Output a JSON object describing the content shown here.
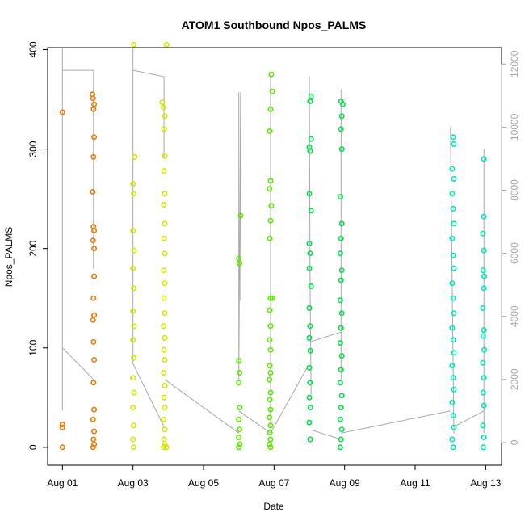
{
  "chart_data": {
    "type": "scatter",
    "title": "ATOM1 Southbound Npos_PALMS",
    "xlabel": "Date",
    "ylabel": "Npos_PALMS",
    "x_tick_labels": [
      "Aug 01",
      "Aug 03",
      "Aug 05",
      "Aug 07",
      "Aug 09",
      "Aug 11",
      "Aug 13"
    ],
    "x_tick_days": [
      1,
      3,
      5,
      7,
      9,
      11,
      13
    ],
    "xlim_days": [
      0.58,
      13.45
    ],
    "ylim": [
      -18,
      402
    ],
    "y_ticks": [
      0,
      100,
      200,
      300,
      400
    ],
    "y2_ticks": [
      0,
      2000,
      4000,
      6000,
      8000,
      10000,
      12000
    ],
    "y2lim": [
      -720,
      12520
    ],
    "y2_color": "#a8a8a8",
    "grid": false,
    "legend": "none",
    "point_style": "open-circle",
    "series": [
      {
        "color": "#ee7a00",
        "points": [
          [
            1.0,
            337
          ],
          [
            1.0,
            23
          ],
          [
            1.0,
            20
          ],
          [
            1.0,
            0
          ],
          [
            1.85,
            355
          ],
          [
            1.87,
            351
          ],
          [
            1.88,
            340
          ],
          [
            1.9,
            312
          ],
          [
            1.88,
            292
          ],
          [
            1.86,
            257
          ],
          [
            1.88,
            222
          ],
          [
            1.9,
            218
          ],
          [
            1.87,
            208
          ],
          [
            1.9,
            172
          ],
          [
            1.88,
            150
          ],
          [
            1.9,
            133
          ],
          [
            1.87,
            128
          ],
          [
            1.88,
            106
          ],
          [
            1.9,
            88
          ],
          [
            1.88,
            65
          ],
          [
            1.9,
            38
          ],
          [
            1.87,
            28
          ],
          [
            1.9,
            16
          ],
          [
            1.88,
            8
          ],
          [
            1.9,
            3
          ],
          [
            1.87,
            0
          ],
          [
            1.9,
            345
          ],
          [
            1.9,
            200
          ]
        ]
      },
      {
        "color": "#d5e600",
        "points": [
          [
            3.02,
            405
          ],
          [
            3.05,
            292
          ],
          [
            3.0,
            265
          ],
          [
            3.02,
            255
          ],
          [
            3.0,
            218
          ],
          [
            3.03,
            198
          ],
          [
            3.0,
            180
          ],
          [
            3.02,
            160
          ],
          [
            3.0,
            137
          ],
          [
            3.03,
            122
          ],
          [
            3.0,
            108
          ],
          [
            3.02,
            90
          ],
          [
            3.0,
            70
          ],
          [
            3.03,
            55
          ],
          [
            3.0,
            40
          ],
          [
            3.02,
            22
          ],
          [
            3.0,
            8
          ],
          [
            3.02,
            0
          ],
          [
            3.83,
            347
          ],
          [
            3.86,
            342
          ],
          [
            3.9,
            333
          ],
          [
            3.88,
            320
          ],
          [
            3.9,
            293
          ],
          [
            3.88,
            278
          ],
          [
            3.9,
            255
          ],
          [
            3.87,
            244
          ],
          [
            3.9,
            225
          ],
          [
            3.88,
            210
          ],
          [
            3.9,
            195
          ],
          [
            3.87,
            178
          ],
          [
            3.9,
            165
          ],
          [
            3.88,
            150
          ],
          [
            3.9,
            135
          ],
          [
            3.87,
            122
          ],
          [
            3.9,
            110
          ],
          [
            3.88,
            98
          ],
          [
            3.9,
            88
          ],
          [
            3.87,
            75
          ],
          [
            3.9,
            62
          ],
          [
            3.88,
            50
          ],
          [
            3.9,
            40
          ],
          [
            3.87,
            28
          ],
          [
            3.9,
            18
          ],
          [
            3.88,
            8
          ],
          [
            3.9,
            2
          ],
          [
            3.87,
            0
          ],
          [
            3.95,
            405
          ],
          [
            3.95,
            0
          ]
        ]
      },
      {
        "color": "#5ee600",
        "points": [
          [
            6.05,
            233
          ],
          [
            6.0,
            190
          ],
          [
            6.02,
            185
          ],
          [
            6.0,
            87
          ],
          [
            6.02,
            75
          ],
          [
            6.0,
            65
          ],
          [
            6.03,
            40
          ],
          [
            6.0,
            28
          ],
          [
            6.02,
            18
          ],
          [
            6.0,
            10
          ],
          [
            6.03,
            3
          ],
          [
            6.0,
            0
          ],
          [
            6.92,
            375
          ],
          [
            6.95,
            358
          ],
          [
            6.9,
            340
          ],
          [
            6.88,
            318
          ],
          [
            6.9,
            268
          ],
          [
            6.87,
            260
          ],
          [
            6.92,
            243
          ],
          [
            6.9,
            228
          ],
          [
            6.88,
            210
          ],
          [
            6.95,
            150
          ],
          [
            6.9,
            150
          ],
          [
            6.88,
            138
          ],
          [
            6.9,
            122
          ],
          [
            6.87,
            108
          ],
          [
            6.9,
            98
          ],
          [
            6.88,
            82
          ],
          [
            6.9,
            75
          ],
          [
            6.87,
            68
          ],
          [
            6.9,
            55
          ],
          [
            6.88,
            48
          ],
          [
            6.9,
            38
          ],
          [
            6.87,
            30
          ],
          [
            6.9,
            22
          ],
          [
            6.88,
            15
          ],
          [
            6.9,
            8
          ],
          [
            6.87,
            3
          ],
          [
            6.9,
            0
          ]
        ]
      },
      {
        "color": "#00e04b",
        "points": [
          [
            8.05,
            353
          ],
          [
            8.02,
            348
          ],
          [
            8.05,
            310
          ],
          [
            8.0,
            302
          ],
          [
            8.02,
            298
          ],
          [
            8.0,
            255
          ],
          [
            8.05,
            238
          ],
          [
            8.0,
            205
          ],
          [
            8.02,
            195
          ],
          [
            8.0,
            180
          ],
          [
            8.05,
            162
          ],
          [
            8.0,
            140
          ],
          [
            8.02,
            122
          ],
          [
            8.0,
            110
          ],
          [
            8.03,
            97
          ],
          [
            8.0,
            80
          ],
          [
            8.02,
            65
          ],
          [
            8.0,
            50
          ],
          [
            8.03,
            40
          ],
          [
            8.0,
            25
          ],
          [
            8.02,
            8
          ],
          [
            8.9,
            348
          ],
          [
            8.95,
            345
          ],
          [
            8.92,
            333
          ],
          [
            8.9,
            320
          ],
          [
            8.92,
            300
          ],
          [
            8.88,
            252
          ],
          [
            8.92,
            225
          ],
          [
            8.9,
            210
          ],
          [
            8.88,
            195
          ],
          [
            8.92,
            178
          ],
          [
            8.9,
            168
          ],
          [
            8.88,
            148
          ],
          [
            8.92,
            135
          ],
          [
            8.9,
            120
          ],
          [
            8.88,
            105
          ],
          [
            8.92,
            92
          ],
          [
            8.9,
            78
          ],
          [
            8.88,
            65
          ],
          [
            8.92,
            52
          ],
          [
            8.9,
            40
          ],
          [
            8.88,
            28
          ],
          [
            8.92,
            18
          ],
          [
            8.9,
            8
          ],
          [
            8.88,
            0
          ]
        ]
      },
      {
        "color": "#00e8b8",
        "points": [
          [
            12.08,
            312
          ],
          [
            12.1,
            305
          ],
          [
            12.05,
            280
          ],
          [
            12.1,
            270
          ],
          [
            12.05,
            255
          ],
          [
            12.08,
            240
          ],
          [
            12.1,
            225
          ],
          [
            12.05,
            210
          ],
          [
            12.08,
            193
          ],
          [
            12.1,
            180
          ],
          [
            12.05,
            165
          ],
          [
            12.08,
            150
          ],
          [
            12.1,
            135
          ],
          [
            12.05,
            120
          ],
          [
            12.08,
            108
          ],
          [
            12.1,
            95
          ],
          [
            12.05,
            82
          ],
          [
            12.08,
            70
          ],
          [
            12.1,
            58
          ],
          [
            12.05,
            45
          ],
          [
            12.08,
            32
          ],
          [
            12.1,
            20
          ],
          [
            12.05,
            8
          ],
          [
            12.08,
            0
          ],
          [
            12.95,
            290
          ],
          [
            12.95,
            232
          ],
          [
            12.92,
            215
          ],
          [
            12.95,
            198
          ],
          [
            12.93,
            178
          ],
          [
            12.96,
            172
          ],
          [
            12.95,
            160
          ],
          [
            12.92,
            140
          ],
          [
            12.95,
            118
          ],
          [
            12.93,
            112
          ],
          [
            12.96,
            98
          ],
          [
            12.92,
            85
          ],
          [
            12.95,
            70
          ],
          [
            12.93,
            55
          ],
          [
            12.95,
            42
          ],
          [
            12.92,
            22
          ],
          [
            12.95,
            10
          ],
          [
            12.93,
            0
          ]
        ]
      }
    ],
    "y2_line_segments": [
      {
        "days": [
          1.0,
          1.0,
          1.0,
          1.0,
          1.0,
          1.0
        ],
        "values": [
          12500,
          11800,
          5500,
          3000,
          2500,
          1000
        ]
      },
      {
        "days": [
          1.0,
          1.88,
          1.88
        ],
        "values": [
          11800,
          11800,
          5500
        ]
      },
      {
        "days": [
          1.0,
          1.88
        ],
        "values": [
          3000,
          2000
        ]
      },
      {
        "days": [
          3.0,
          3.0,
          3.0,
          3.0
        ],
        "values": [
          12500,
          11800,
          6000,
          2500
        ]
      },
      {
        "days": [
          3.0,
          3.88,
          3.88
        ],
        "values": [
          11800,
          11600,
          9000
        ]
      },
      {
        "days": [
          3.0,
          3.88
        ],
        "values": [
          2500,
          500
        ]
      },
      {
        "days": [
          3.9,
          6.0
        ],
        "values": [
          2000,
          300
        ]
      },
      {
        "days": [
          6.0,
          6.0,
          6.05,
          6.05
        ],
        "values": [
          11100,
          2000,
          11100,
          4500
        ]
      },
      {
        "days": [
          6.0,
          6.9
        ],
        "values": [
          1000,
          300
        ]
      },
      {
        "days": [
          6.9,
          6.9
        ],
        "values": [
          11600,
          300
        ]
      },
      {
        "days": [
          6.9,
          8.0
        ],
        "values": [
          300,
          2500
        ]
      },
      {
        "days": [
          8.0,
          8.02,
          8.05
        ],
        "values": [
          11600,
          5000,
          1500
        ]
      },
      {
        "days": [
          8.05,
          8.9
        ],
        "values": [
          3200,
          3500
        ]
      },
      {
        "days": [
          8.9,
          8.9
        ],
        "values": [
          11200,
          2000
        ]
      },
      {
        "days": [
          8.05,
          8.9
        ],
        "values": [
          400,
          100
        ]
      },
      {
        "days": [
          8.9,
          12.0
        ],
        "values": [
          300,
          1000
        ]
      },
      {
        "days": [
          12.0,
          12.1
        ],
        "values": [
          10000,
          300
        ]
      },
      {
        "days": [
          12.1,
          12.95
        ],
        "values": [
          500,
          1000
        ]
      },
      {
        "days": [
          12.95,
          12.95
        ],
        "values": [
          9300,
          300
        ]
      }
    ]
  }
}
